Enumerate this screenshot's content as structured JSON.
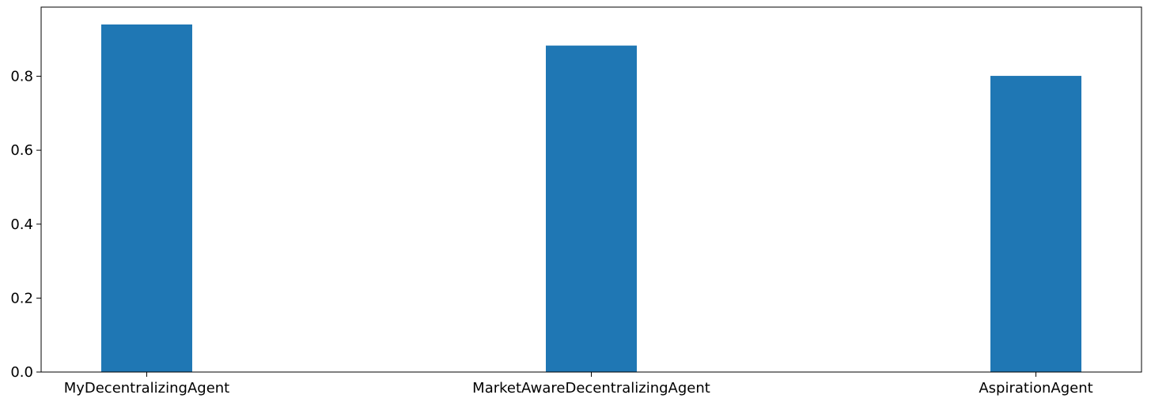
{
  "chart_data": {
    "type": "bar",
    "title": "",
    "xlabel": "",
    "ylabel": "",
    "categories": [
      "MyDecentralizingAgent",
      "MarketAwareDecentralizingAgent",
      "AspirationAgent"
    ],
    "values": [
      0.94,
      0.883,
      0.801
    ],
    "ylim": [
      0,
      0.987
    ],
    "yticks": [
      0.0,
      0.2,
      0.4,
      0.6,
      0.8
    ],
    "ytick_labels": [
      "0.0",
      "0.2",
      "0.4",
      "0.6",
      "0.8"
    ],
    "grid": false,
    "legend": "none",
    "bar_color": "#1f77b4",
    "axis_color": "#000000",
    "background": "#ffffff"
  }
}
